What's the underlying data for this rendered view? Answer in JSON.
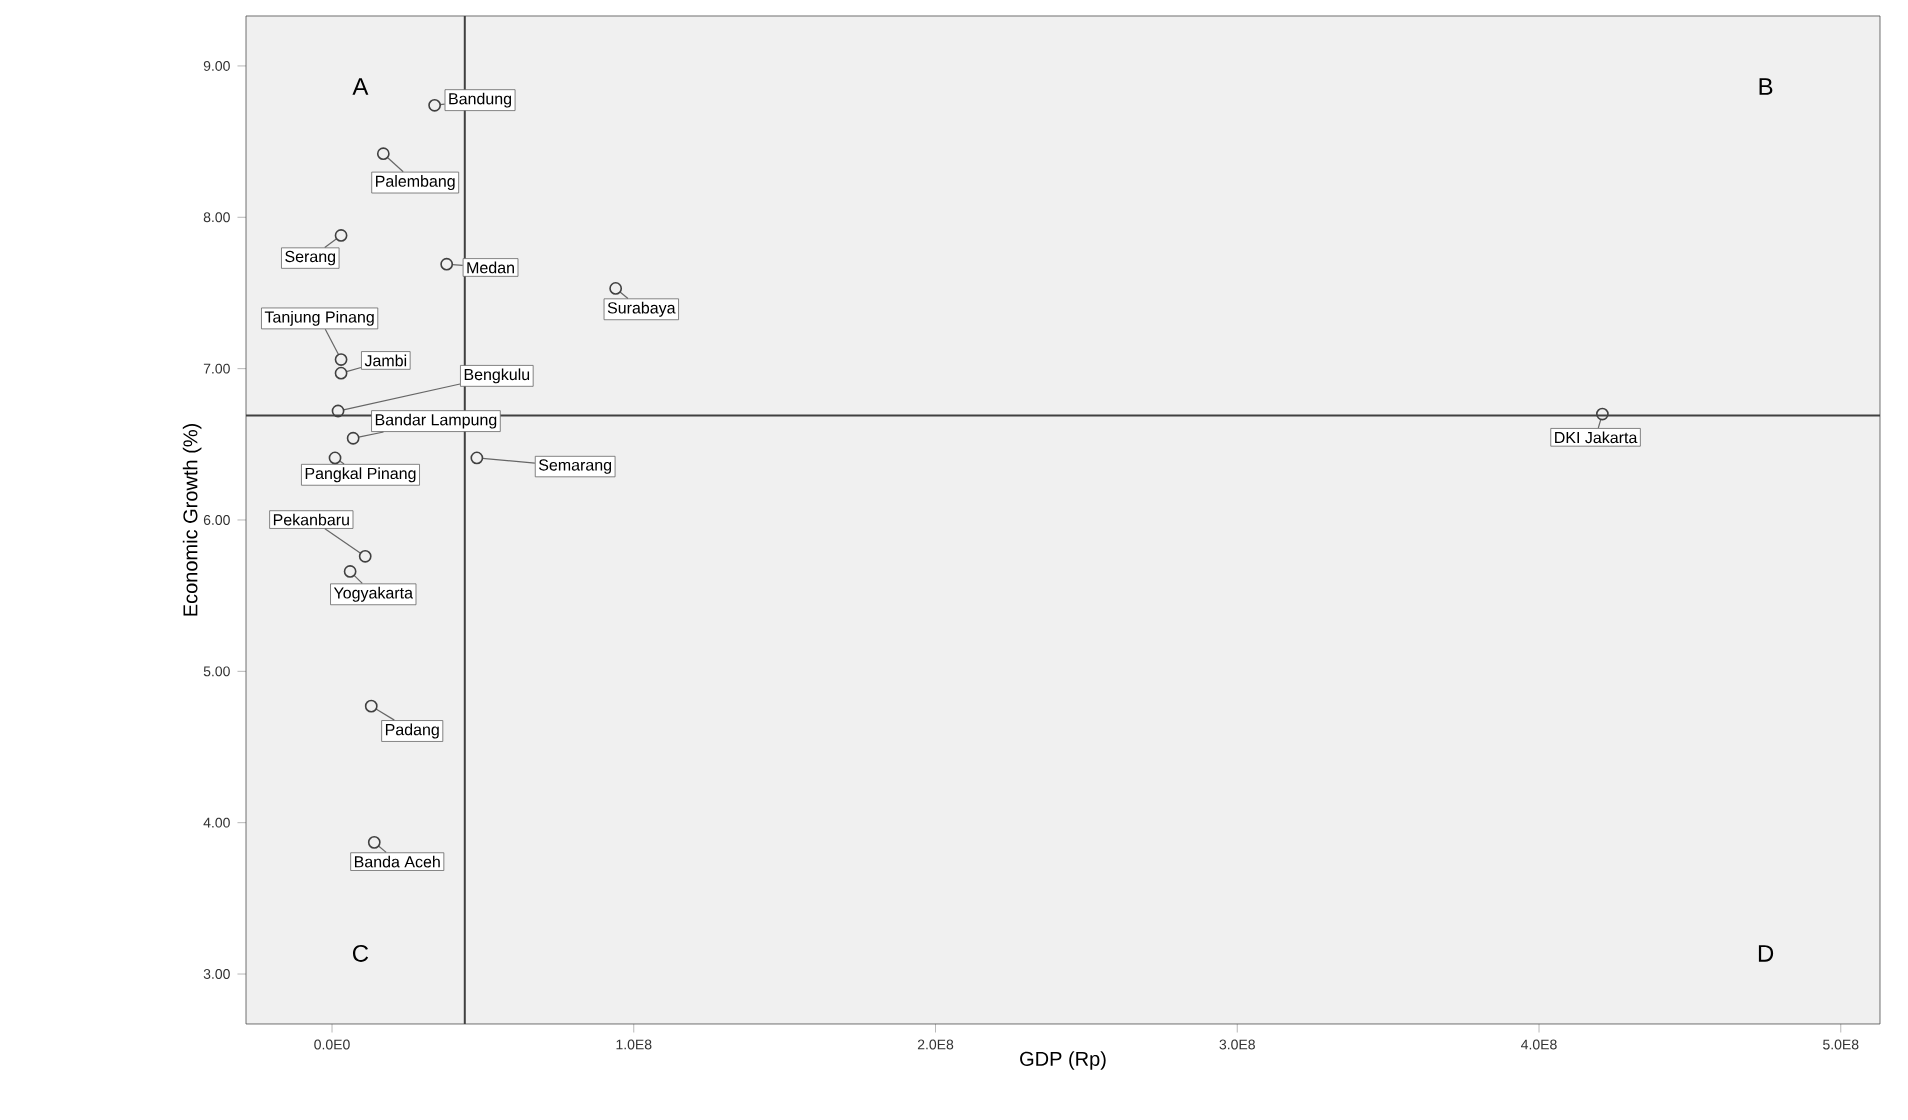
{
  "chart_data": {
    "type": "scatter",
    "xlabel": "GDP (Rp)",
    "ylabel": "Economic Growth (%)",
    "color": "#404040",
    "marker": "circle",
    "x": [
      34000000,
      17000000,
      3000000,
      38000000,
      94000000,
      3000000,
      3000000,
      2000000,
      7000000,
      1000000,
      48000000,
      11000000,
      6000000,
      13000000,
      14000000,
      421000000
    ],
    "values": [
      8.74,
      8.42,
      7.88,
      7.69,
      7.53,
      7.06,
      6.97,
      6.72,
      6.54,
      6.41,
      6.41,
      5.76,
      5.66,
      4.77,
      3.87,
      6.7
    ],
    "xlim": [
      -28500000,
      513000000
    ],
    "ylim": [
      2.67,
      9.33
    ],
    "xticks": [
      {
        "value": 0,
        "label": "0.0E0"
      },
      {
        "value": 100000000,
        "label": "1.0E8"
      },
      {
        "value": 200000000,
        "label": "2.0E8"
      },
      {
        "value": 300000000,
        "label": "3.0E8"
      },
      {
        "value": 400000000,
        "label": "4.0E8"
      },
      {
        "value": 500000000,
        "label": "5.0E8"
      }
    ],
    "yticks": [
      {
        "value": 3,
        "label": "3.00"
      },
      {
        "value": 4,
        "label": "4.00"
      },
      {
        "value": 5,
        "label": "5.00"
      },
      {
        "value": 6,
        "label": "6.00"
      },
      {
        "value": 7,
        "label": "7.00"
      },
      {
        "value": 8,
        "label": "8.00"
      },
      {
        "value": 9,
        "label": "9.00"
      }
    ],
    "ref_lines": [
      {
        "axis": "x",
        "value": 44000000,
        "color": "#404040"
      },
      {
        "axis": "y",
        "value": 6.69,
        "color": "#404040"
      }
    ],
    "annotations": [
      "A",
      "B",
      "C",
      "D",
      {
        "text": "Bandung",
        "x": 34000000,
        "y": 8.74
      },
      {
        "text": "Palembang",
        "x": 17000000,
        "y": 8.42
      },
      {
        "text": "Serang",
        "x": 3000000,
        "y": 7.88
      },
      {
        "text": "Medan",
        "x": 38000000,
        "y": 7.69
      },
      {
        "text": "Surabaya",
        "x": 94000000,
        "y": 7.53
      },
      {
        "text": "Tanjung Pinang",
        "x": 3000000,
        "y": 7.06
      },
      {
        "text": "Jambi",
        "x": 3000000,
        "y": 6.97
      },
      {
        "text": "Bengkulu",
        "x": 2000000,
        "y": 6.72
      },
      {
        "text": "Bandar Lampung",
        "x": 7000000,
        "y": 6.54
      },
      {
        "text": "Pangkal Pinang",
        "x": 1000000,
        "y": 6.41
      },
      {
        "text": "Semarang",
        "x": 48000000,
        "y": 6.41
      },
      {
        "text": "Pekanbaru",
        "x": 11000000,
        "y": 5.76
      },
      {
        "text": "Yogyakarta",
        "x": 6000000,
        "y": 5.66
      },
      {
        "text": "Padang",
        "x": 13000000,
        "y": 4.77
      },
      {
        "text": "Banda Aceh",
        "x": 14000000,
        "y": 3.87
      },
      {
        "text": "DKI Jakarta",
        "x": 421000000,
        "y": 6.7
      }
    ]
  }
}
